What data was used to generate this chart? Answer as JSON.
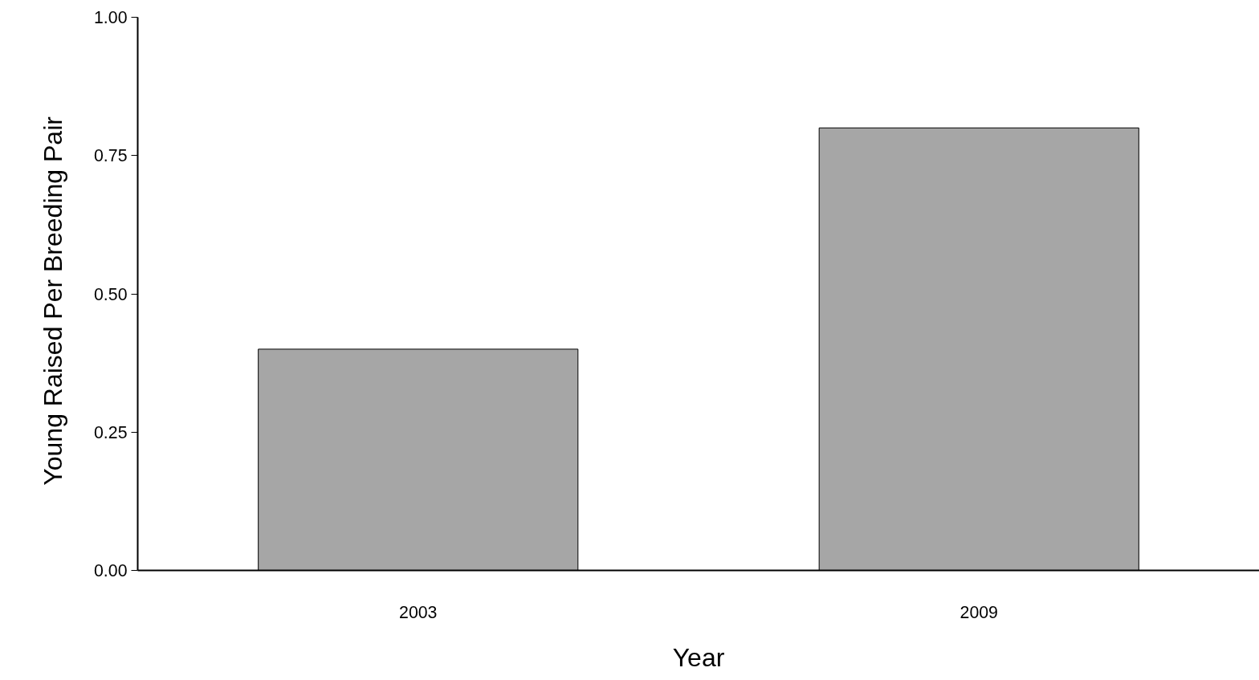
{
  "chart_data": {
    "type": "bar",
    "xlabel": "Year",
    "ylabel": "Young Raised  Per Breeding  Pair",
    "categories": [
      "2003",
      "2009"
    ],
    "values": [
      0.4,
      0.8
    ],
    "color": "#a6a6a6",
    "ylim": [
      0,
      1
    ],
    "yticks": [
      {
        "value": 0,
        "label": "0.00"
      },
      {
        "value": 0.25,
        "label": "0.25"
      },
      {
        "value": 0.5,
        "label": "0.50"
      },
      {
        "value": 0.75,
        "label": "0.75"
      },
      {
        "value": 1,
        "label": "1.00"
      }
    ]
  }
}
